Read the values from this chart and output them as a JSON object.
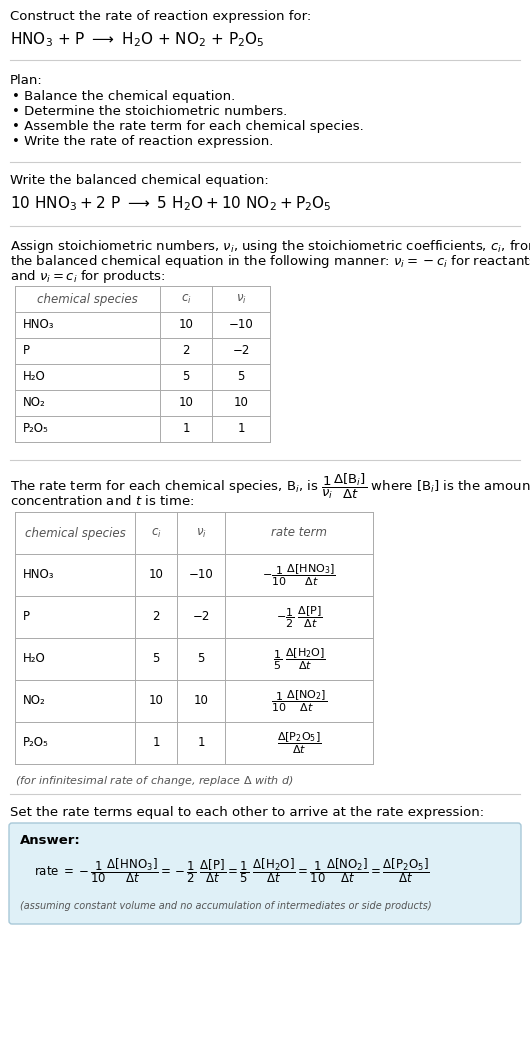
{
  "bg_color": "#ffffff",
  "text_color": "#000000",
  "gray_text": "#555555",
  "answer_box_color": "#dff0f7",
  "answer_box_edge": "#a8c8d8",
  "title_line1": "Construct the rate of reaction expression for:",
  "title_eq_parts": [
    "HNO",
    "3",
    " + P ⟶ H",
    "2",
    "O + NO",
    "2",
    " + P",
    "2",
    "O",
    "5"
  ],
  "plan_header": "Plan:",
  "plan_items": [
    "• Balance the chemical equation.",
    "• Determine the stoichiometric numbers.",
    "• Assemble the rate term for each chemical species.",
    "• Write the rate of reaction expression."
  ],
  "balanced_header": "Write the balanced chemical equation:",
  "stoich_intro": "Assign stoichiometric numbers, ",
  "stoich_line2": "the balanced chemical equation in the following manner: ",
  "stoich_line3": "and ",
  "table1_rows": [
    [
      "HNO₃",
      "10",
      "−10"
    ],
    [
      "P",
      "2",
      "−2"
    ],
    [
      "H₂O",
      "5",
      "5"
    ],
    [
      "NO₂",
      "10",
      "10"
    ],
    [
      "P₂O₅",
      "1",
      "1"
    ]
  ],
  "table2_rows": [
    [
      "HNO₃",
      "10",
      "−10"
    ],
    [
      "P",
      "2",
      "−2"
    ],
    [
      "H₂O",
      "5",
      "5"
    ],
    [
      "NO₂",
      "10",
      "10"
    ],
    [
      "P₂O₅",
      "1",
      "1"
    ]
  ],
  "infinitesimal_note": "(for infinitesimal rate of change, replace Δ with ",
  "set_equal_header": "Set the rate terms equal to each other to arrive at the rate expression:",
  "answer_label": "Answer:",
  "answer_note": "(assuming constant volume and no accumulation of intermediates or side products)"
}
